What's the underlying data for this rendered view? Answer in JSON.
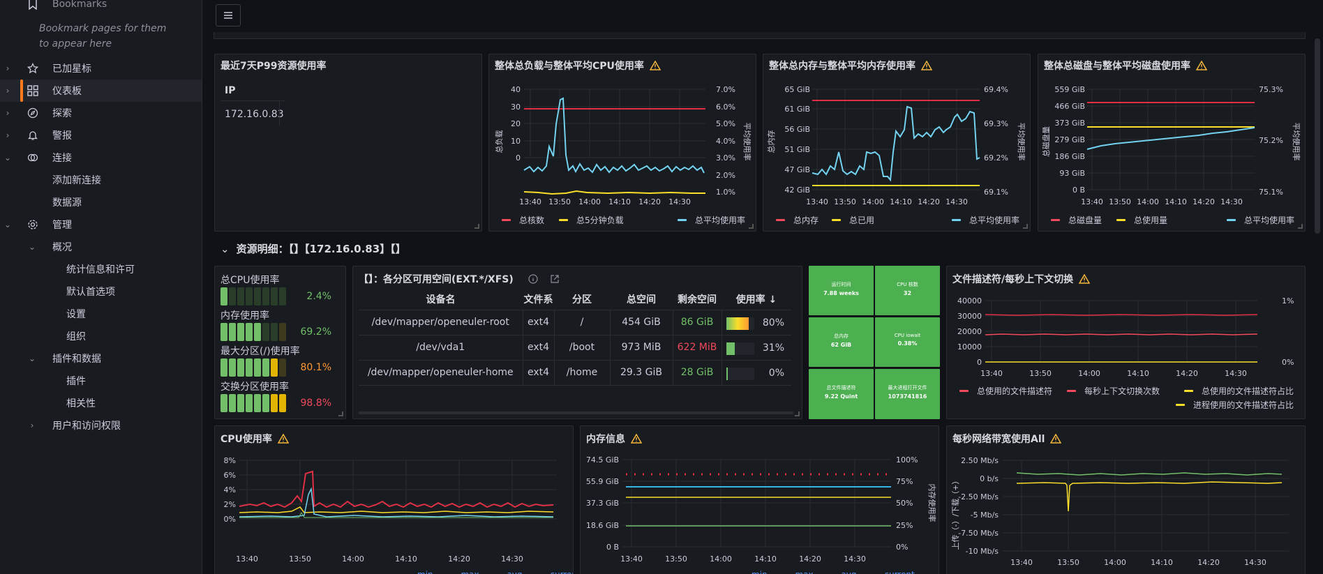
{
  "sidebar": {
    "bookmarks": "Bookmarks",
    "bookmarks_hint": "Bookmark pages for them to appear here",
    "starred": "已加星标",
    "dashboards": "仪表板",
    "explore": "探索",
    "alerting": "警报",
    "connections": "连接",
    "add_connection": "添加新连接",
    "data_sources": "数据源",
    "admin": "管理",
    "overview": "概况",
    "stats": "统计信息和许可",
    "default_prefs": "默认首选项",
    "settings": "设置",
    "orgs": "组织",
    "plugins_data": "插件和数据",
    "plugins": "插件",
    "correlations": "相关性",
    "users_access": "用户和访问权限"
  },
  "p99": {
    "title": "最近7天P99资源使用率",
    "col": "IP",
    "ip": "172.16.0.83"
  },
  "cpu_load": {
    "title": "整体总负载与整体平均CPU使用率",
    "ylabel": "总负载",
    "y2label": "平均使用率",
    "yticks": [
      "40",
      "30",
      "20",
      "10",
      "0"
    ],
    "y2ticks": [
      "7.0%",
      "6.0%",
      "5.0%",
      "4.0%",
      "3.0%",
      "2.0%",
      "1.0%"
    ],
    "legend": [
      "总核数",
      "总5分钟负载",
      "总平均使用率"
    ]
  },
  "mem": {
    "title": "整体总内存与整体平均内存使用率",
    "ylabel": "总内存",
    "y2label": "平均使用率",
    "yticks": [
      "65 GiB",
      "61 GiB",
      "56 GiB",
      "51 GiB",
      "47 GiB",
      "42 GiB"
    ],
    "y2ticks": [
      "69.4%",
      "69.3%",
      "69.2%",
      "69.1%"
    ],
    "legend": [
      "总内存",
      "总已用",
      "总平均使用率"
    ]
  },
  "disk": {
    "title": "整体总磁盘与整体平均磁盘使用率",
    "ylabel": "总磁盘量",
    "y2label": "平均使用率",
    "yticks": [
      "559 GiB",
      "466 GiB",
      "373 GiB",
      "279 GiB",
      "186 GiB",
      "93 GiB",
      "0 B"
    ],
    "y2ticks": [
      "75.3%",
      "75.2%",
      "75.1%"
    ],
    "legend": [
      "总磁盘量",
      "总使用量",
      "总平均使用率"
    ]
  },
  "xticks": [
    "13:40",
    "13:50",
    "14:00",
    "14:10",
    "14:20",
    "14:30"
  ],
  "row_title": "资源明细：【】【172.16.0.83】【】",
  "bars": [
    {
      "label": "总CPU使用率",
      "value": "2.4%",
      "color": "#73bf69"
    },
    {
      "label": "内存使用率",
      "value": "69.2%",
      "color": "#73bf69"
    },
    {
      "label": "最大分区(/)使用率",
      "value": "80.1%",
      "color": "#fade2a"
    },
    {
      "label": "交换分区使用率",
      "value": "98.8%",
      "color": "#f2495c"
    }
  ],
  "fs": {
    "title": "【】：各分区可用空间(EXT.*/XFS)",
    "headers": [
      "设备名",
      "文件系",
      "分区",
      "总空间",
      "剩余空间",
      "使用率 ↓"
    ],
    "rows": [
      [
        "/dev/mapper/openeuler-root",
        "ext4",
        "/",
        "454 GiB",
        "86 GiB",
        "80%"
      ],
      [
        "/dev/vda1",
        "ext4",
        "/boot",
        "973 MiB",
        "622 MiB",
        "31%"
      ],
      [
        "/dev/mapper/openeuler-home",
        "ext4",
        "/home",
        "29.3 GiB",
        "28 GiB",
        "0%"
      ]
    ]
  },
  "tiles": [
    {
      "t": "运行时间",
      "v": "7.88 weeks"
    },
    {
      "t": "CPU 核数",
      "v": "32"
    },
    {
      "t": "总内存",
      "v": "62 GiB"
    },
    {
      "t": "CPU iowait",
      "v": "0.38%"
    },
    {
      "t": "总文件描述符",
      "v": "9.22 Quint"
    },
    {
      "t": "最大进程打开文件",
      "v": "1073741816"
    }
  ],
  "fd": {
    "title": "文件描述符/每秒上下文切换",
    "yticks": [
      "40000",
      "30000",
      "20000",
      "10000",
      "0"
    ],
    "y2ticks": [
      "1%",
      "0%"
    ],
    "legend": [
      "总使用的文件描述符",
      "每秒上下文切换次数",
      "总使用的文件描述符占比",
      "进程使用的文件描述符占比"
    ]
  },
  "cpu": {
    "title": "CPU使用率",
    "yticks": [
      "8%",
      "6%",
      "4%",
      "2%",
      "0%"
    ],
    "footer": [
      "min",
      "max",
      "avg",
      "current"
    ]
  },
  "meminfo": {
    "title": "内存信息",
    "yticks": [
      "74.5 GiB",
      "55.9 GiB",
      "37.3 GiB",
      "18.6 GiB",
      "0 B"
    ],
    "y2ticks": [
      "100%",
      "75%",
      "50%",
      "25%",
      "0%"
    ],
    "y2label": "内存使用率",
    "footer": [
      "min",
      "max",
      "avg",
      "current"
    ]
  },
  "net": {
    "title": "每秒网络带宽使用All",
    "yticks": [
      "2.50 Mb/s",
      "0 b/s",
      "-2.50 Mb/s",
      "-5 Mb/s",
      "-7.50 Mb/s",
      "-10 Mb/s"
    ],
    "ylabel": "上传（-）/下载（+）"
  },
  "colors": {
    "red": "#f2495c",
    "yellow": "#fade2a",
    "blue": "#73d2f0",
    "green": "#73bf69",
    "orange": "#ff9830",
    "accent": "#ff7a1a"
  }
}
